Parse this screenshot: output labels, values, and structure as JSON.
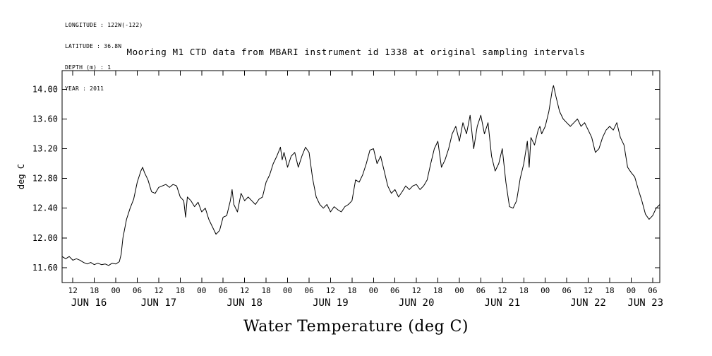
{
  "page": {
    "background": "#ffffff"
  },
  "metadata_block": {
    "lines": [
      "LONGITUDE : 122W(-122)",
      "LATITUDE : 36.8N",
      "DEPTH (m) : 1",
      "YEAR : 2011"
    ]
  },
  "chart_data": {
    "type": "line",
    "title": "Mooring M1 CTD data from MBARI instrument id 1338 at original sampling intervals",
    "xlabel": "Water Temperature (deg C)",
    "ylabel": "deg C",
    "line_color": "#000000",
    "background": "#ffffff",
    "grid": false,
    "legend": false,
    "x_unit": "hours since JUN 16 2011 00:00",
    "xlim": [
      9,
      176
    ],
    "ylim": [
      11.4,
      14.25
    ],
    "y_ticks": [
      11.6,
      12.0,
      12.4,
      12.8,
      13.2,
      13.6,
      14.0
    ],
    "y_tick_labels": [
      "11.60",
      "12.00",
      "12.40",
      "12.80",
      "13.20",
      "13.60",
      "14.00"
    ],
    "x_tick_hours": [
      12,
      18,
      24,
      30,
      36,
      42,
      48,
      54,
      60,
      66,
      72,
      78,
      84,
      90,
      96,
      102,
      108,
      114,
      120,
      126,
      132,
      138,
      144,
      150,
      156,
      162,
      168,
      174
    ],
    "x_tick_labels": [
      "12",
      "18",
      "00",
      "06",
      "12",
      "18",
      "00",
      "06",
      "12",
      "18",
      "00",
      "06",
      "12",
      "18",
      "00",
      "06",
      "12",
      "18",
      "00",
      "06",
      "12",
      "18",
      "00",
      "06",
      "12",
      "18",
      "00",
      "06"
    ],
    "day_label_hours": [
      16.5,
      36,
      60,
      84,
      108,
      132,
      156,
      172
    ],
    "day_labels": [
      "JUN 16",
      "JUN 17",
      "JUN 18",
      "JUN 19",
      "JUN 20",
      "JUN 21",
      "JUN 22",
      "JUN 23"
    ],
    "series": [
      {
        "name": "water temperature",
        "x": [
          9,
          10,
          11,
          12,
          13,
          14,
          15,
          16,
          17,
          18,
          19,
          20,
          21,
          22,
          23,
          24,
          25,
          25.5,
          26,
          27,
          28,
          29,
          30,
          31,
          31.5,
          32,
          33,
          34,
          35,
          36,
          37,
          38,
          39,
          40,
          41,
          42,
          43,
          43.5,
          44,
          45,
          46,
          47,
          48,
          49,
          50,
          51,
          52,
          53,
          54,
          55,
          56,
          56.5,
          57,
          58,
          59,
          60,
          61,
          62,
          63,
          64,
          65,
          66,
          67,
          68,
          69,
          70,
          70.5,
          71,
          72,
          73,
          74,
          75,
          76,
          77,
          78,
          79,
          80,
          81,
          82,
          83,
          84,
          85,
          86,
          87,
          88,
          89,
          90,
          91,
          92,
          93,
          94,
          95,
          96,
          97,
          98,
          99,
          100,
          101,
          102,
          103,
          104,
          105,
          106,
          107,
          108,
          109,
          110,
          111,
          112,
          113,
          114,
          115,
          116,
          117,
          118,
          119,
          120,
          121,
          122,
          123,
          124,
          125,
          126,
          127,
          128,
          129,
          130,
          131,
          132,
          133,
          134,
          135,
          136,
          137,
          138,
          139,
          139.5,
          140,
          141,
          142,
          142.5,
          143,
          144,
          145,
          146,
          146.3,
          147,
          148,
          149,
          150,
          151,
          152,
          153,
          154,
          155,
          156,
          157,
          158,
          159,
          160,
          161,
          162,
          163,
          164,
          165,
          166,
          167,
          168,
          169,
          170,
          171,
          172,
          173,
          174,
          175,
          176
        ],
        "y": [
          11.75,
          11.72,
          11.75,
          11.7,
          11.72,
          11.7,
          11.67,
          11.65,
          11.67,
          11.64,
          11.66,
          11.64,
          11.65,
          11.63,
          11.66,
          11.65,
          11.68,
          11.78,
          12.0,
          12.25,
          12.4,
          12.52,
          12.75,
          12.9,
          12.95,
          12.88,
          12.78,
          12.62,
          12.6,
          12.68,
          12.7,
          12.72,
          12.68,
          12.72,
          12.7,
          12.55,
          12.5,
          12.28,
          12.55,
          12.5,
          12.42,
          12.48,
          12.35,
          12.4,
          12.25,
          12.15,
          12.05,
          12.1,
          12.28,
          12.3,
          12.5,
          12.65,
          12.45,
          12.35,
          12.6,
          12.5,
          12.55,
          12.5,
          12.45,
          12.52,
          12.55,
          12.75,
          12.85,
          13.0,
          13.1,
          13.22,
          13.05,
          13.15,
          12.95,
          13.1,
          13.15,
          12.95,
          13.1,
          13.22,
          13.15,
          12.8,
          12.55,
          12.45,
          12.4,
          12.45,
          12.35,
          12.42,
          12.38,
          12.35,
          12.42,
          12.45,
          12.5,
          12.78,
          12.75,
          12.85,
          13.0,
          13.18,
          13.2,
          13.0,
          13.1,
          12.9,
          12.7,
          12.6,
          12.65,
          12.55,
          12.62,
          12.7,
          12.65,
          12.7,
          12.72,
          12.65,
          12.7,
          12.78,
          13.0,
          13.2,
          13.3,
          12.95,
          13.05,
          13.2,
          13.4,
          13.5,
          13.3,
          13.55,
          13.4,
          13.65,
          13.2,
          13.5,
          13.65,
          13.4,
          13.55,
          13.1,
          12.9,
          13.0,
          13.2,
          12.75,
          12.42,
          12.4,
          12.5,
          12.8,
          13.0,
          13.3,
          12.95,
          13.35,
          13.25,
          13.45,
          13.5,
          13.4,
          13.5,
          13.7,
          14.0,
          14.05,
          13.9,
          13.7,
          13.6,
          13.55,
          13.5,
          13.55,
          13.6,
          13.5,
          13.55,
          13.45,
          13.35,
          13.15,
          13.2,
          13.35,
          13.45,
          13.5,
          13.45,
          13.55,
          13.35,
          13.25,
          12.95,
          12.88,
          12.82,
          12.65,
          12.5,
          12.32,
          12.25,
          12.3,
          12.4,
          12.45
        ]
      }
    ]
  }
}
